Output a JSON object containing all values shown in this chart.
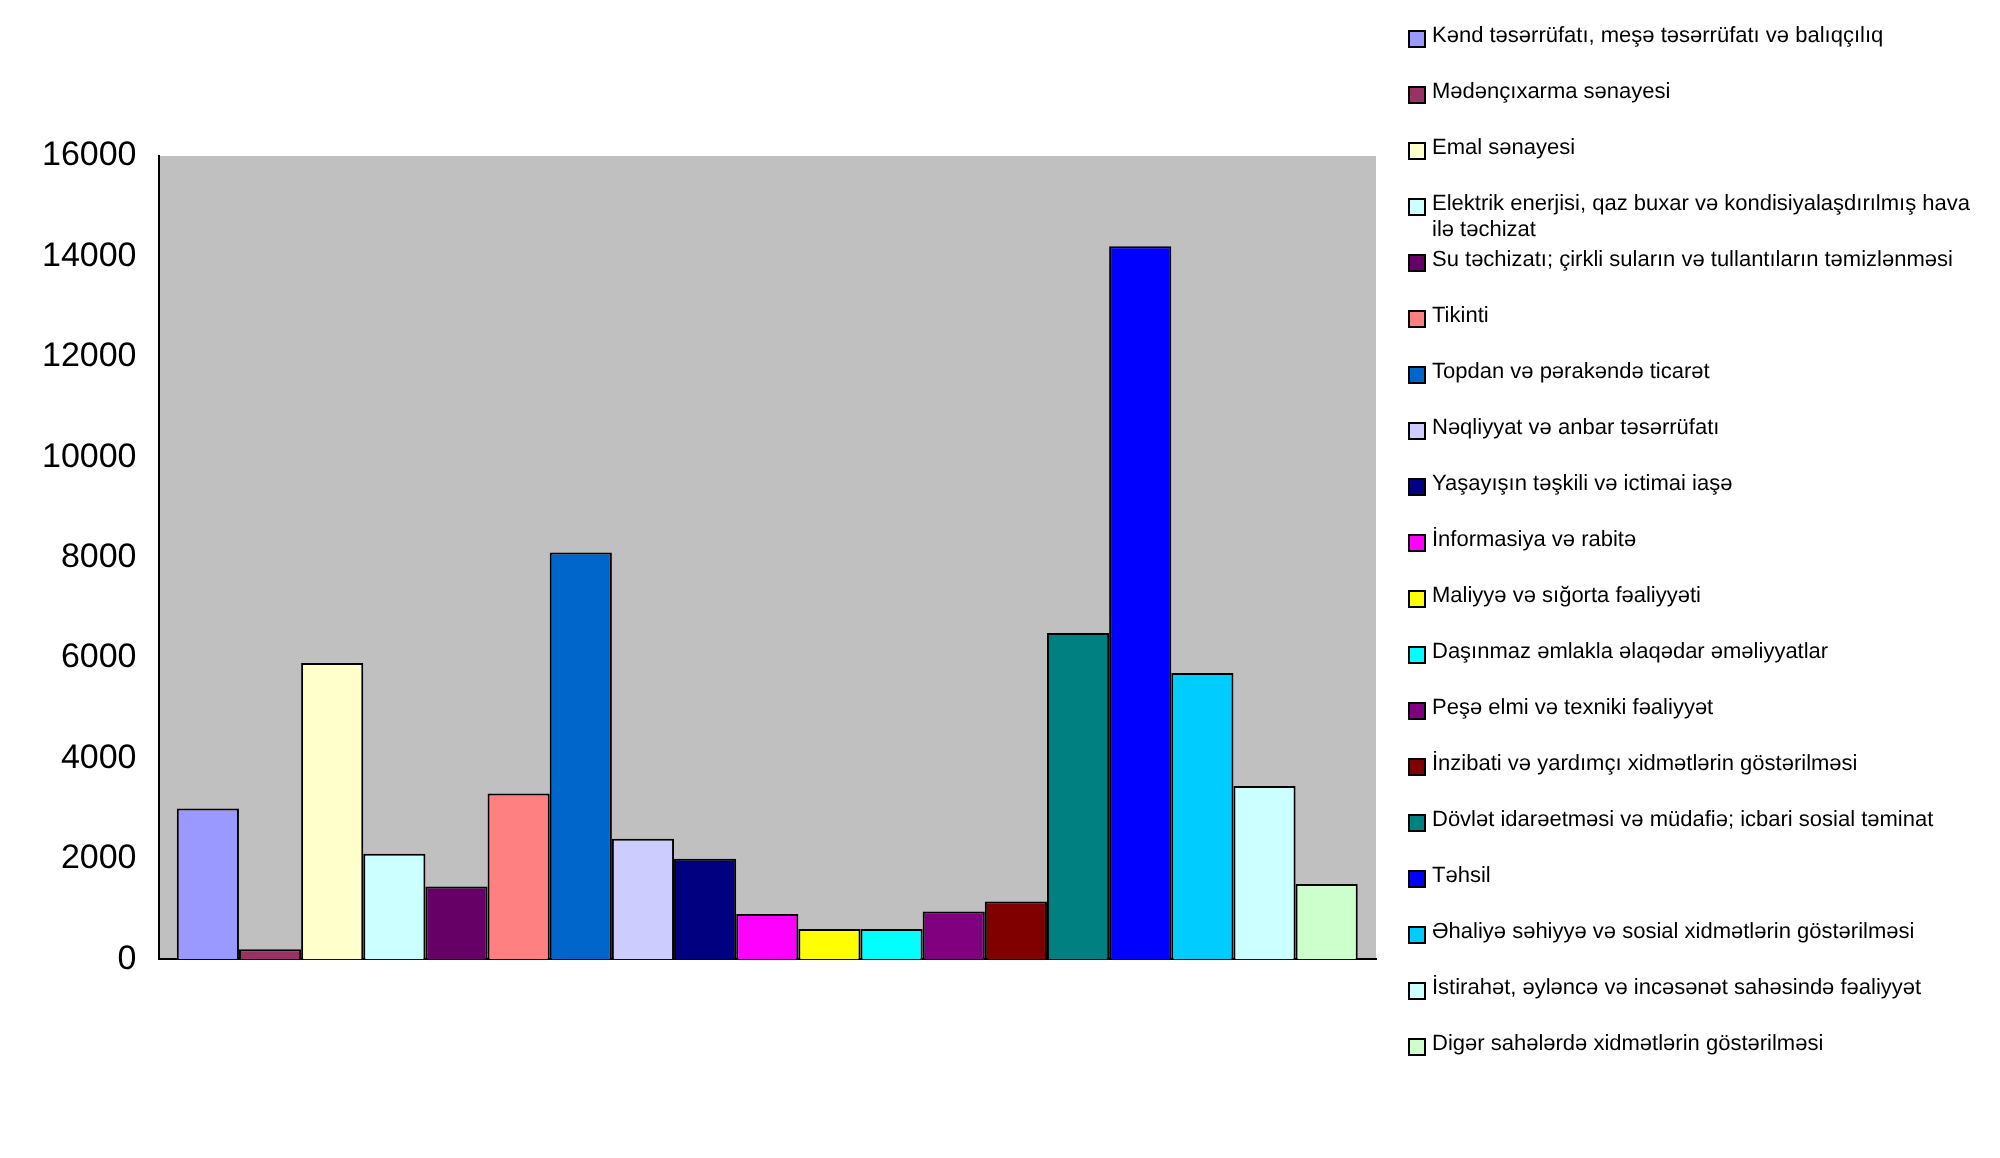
{
  "chart_data": {
    "type": "bar",
    "categories": [
      null
    ],
    "series": [
      {
        "name": "Kənd təsərrüfatı,  meşə təsərrüfatı və balıqçılıq",
        "color": "#9999ff",
        "values": [
          3000
        ]
      },
      {
        "name": "Mədənçıxarma sənayesi",
        "color": "#993366",
        "values": [
          200
        ]
      },
      {
        "name": "Emal sənayesi",
        "color": "#ffffcc",
        "values": [
          5900
        ]
      },
      {
        "name": "Elektrik enerjisi, qaz buxar və kondisiyalaşdırılmış hava ilə təchizat",
        "color": "#ccffff",
        "values": [
          2100
        ]
      },
      {
        "name": "Su təchizatı; çirkli suların və tullantıların təmizlənməsi",
        "color": "#660066",
        "values": [
          1450
        ]
      },
      {
        "name": "Tikinti",
        "color": "#ff8080",
        "values": [
          3300
        ]
      },
      {
        "name": "Topdan və pərakəndə ticarət",
        "color": "#0066cc",
        "values": [
          8100
        ]
      },
      {
        "name": "Nəqliyyat və anbar təsərrüfatı",
        "color": "#ccccff",
        "values": [
          2400
        ]
      },
      {
        "name": "Yaşayışın təşkili və ictimai iaşə",
        "color": "#000080",
        "values": [
          2000
        ]
      },
      {
        "name": "İnformasiya və rabitə",
        "color": "#ff00ff",
        "values": [
          900
        ]
      },
      {
        "name": "Maliyyə və sığorta fəaliyyəti",
        "color": "#ffff00",
        "values": [
          600
        ]
      },
      {
        "name": "Daşınmaz əmlakla əlaqədar əməliyyatlar",
        "color": "#00ffff",
        "values": [
          600
        ]
      },
      {
        "name": "Peşə elmi və texniki fəaliyyət",
        "color": "#800080",
        "values": [
          950
        ]
      },
      {
        "name": "İnzibati və yardımçı xidmətlərin göstərilməsi",
        "color": "#800000",
        "values": [
          1150
        ]
      },
      {
        "name": "Dövlət idarəetməsi və müdafiə; icbari sosial təminat",
        "color": "#008080",
        "values": [
          6500
        ]
      },
      {
        "name": "Təhsil",
        "color": "#0000ff",
        "values": [
          14200
        ]
      },
      {
        "name": "Əhaliyə səhiyyə və sosial xidmətlərin göstərilməsi",
        "color": "#00ccff",
        "values": [
          5700
        ]
      },
      {
        "name": "İstirahət, əyləncə və incəsənət sahəsində fəaliyyət",
        "color": "#ccffff",
        "values": [
          3450
        ]
      },
      {
        "name": "Digər sahələrdə xidmətlərin göstərilməsi",
        "color": "#ccffcc",
        "values": [
          1500
        ]
      }
    ],
    "ylim": [
      0,
      16000
    ],
    "yticks": [
      0,
      2000,
      4000,
      6000,
      8000,
      10000,
      12000,
      14000,
      16000
    ],
    "grid": false,
    "legend": "right"
  }
}
